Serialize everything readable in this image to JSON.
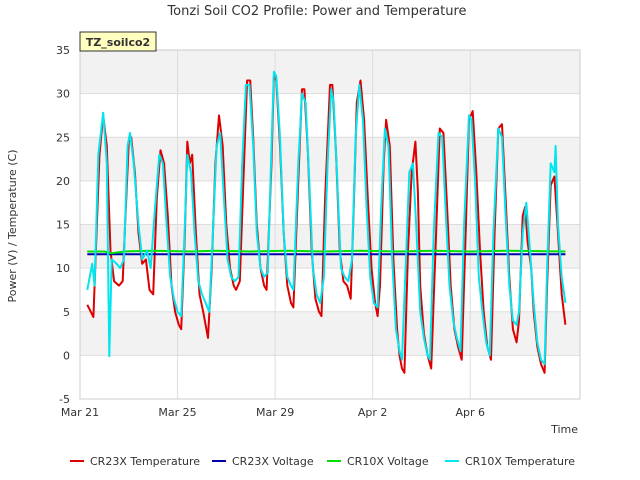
{
  "chart_data": {
    "type": "line",
    "title": "Tonzi Soil CO2 Profile: Power and Temperature",
    "xlabel": "Time",
    "ylabel": "Power (V) / Temperature (C)",
    "badge": "TZ_soilco2",
    "ylim": [
      -5,
      35
    ],
    "yticks": [
      -5,
      0,
      5,
      10,
      15,
      20,
      25,
      30,
      35
    ],
    "xlim": [
      0,
      20.5
    ],
    "xticks": [
      {
        "x": 0,
        "label": "Mar 21"
      },
      {
        "x": 4,
        "label": "Mar 25"
      },
      {
        "x": 8,
        "label": "Mar 29"
      },
      {
        "x": 12,
        "label": "Apr 2"
      },
      {
        "x": 16,
        "label": "Apr 6"
      }
    ],
    "grid": true,
    "legend_position": "bottom",
    "series": [
      {
        "name": "CR23X Temperature",
        "color": "#dd0000",
        "points": [
          [
            0.3,
            5.8
          ],
          [
            0.55,
            4.4
          ],
          [
            0.8,
            23
          ],
          [
            0.95,
            27.5
          ],
          [
            1.1,
            24
          ],
          [
            1.25,
            12
          ],
          [
            1.4,
            8.5
          ],
          [
            1.6,
            8
          ],
          [
            1.75,
            8.5
          ],
          [
            1.85,
            15
          ],
          [
            2.0,
            24.5
          ],
          [
            2.1,
            25
          ],
          [
            2.25,
            21
          ],
          [
            2.4,
            14
          ],
          [
            2.55,
            10.5
          ],
          [
            2.7,
            11
          ],
          [
            2.85,
            7.5
          ],
          [
            3.0,
            7
          ],
          [
            3.15,
            18
          ],
          [
            3.3,
            23.5
          ],
          [
            3.45,
            22
          ],
          [
            3.6,
            16
          ],
          [
            3.75,
            8
          ],
          [
            3.9,
            5
          ],
          [
            4.05,
            3.5
          ],
          [
            4.15,
            3
          ],
          [
            4.3,
            14
          ],
          [
            4.4,
            24.5
          ],
          [
            4.5,
            22
          ],
          [
            4.6,
            23
          ],
          [
            4.75,
            14
          ],
          [
            4.9,
            7
          ],
          [
            5.05,
            5
          ],
          [
            5.25,
            2
          ],
          [
            5.4,
            10
          ],
          [
            5.55,
            22
          ],
          [
            5.7,
            27.5
          ],
          [
            5.85,
            24
          ],
          [
            6.0,
            15
          ],
          [
            6.15,
            10
          ],
          [
            6.3,
            8
          ],
          [
            6.4,
            7.5
          ],
          [
            6.55,
            8.5
          ],
          [
            6.7,
            20
          ],
          [
            6.85,
            31.5
          ],
          [
            6.98,
            31.5
          ],
          [
            7.1,
            25
          ],
          [
            7.25,
            15
          ],
          [
            7.4,
            10
          ],
          [
            7.55,
            8
          ],
          [
            7.65,
            7.5
          ],
          [
            7.85,
            22
          ],
          [
            7.95,
            32
          ],
          [
            8.05,
            31.5
          ],
          [
            8.2,
            24
          ],
          [
            8.35,
            14
          ],
          [
            8.5,
            8
          ],
          [
            8.65,
            6
          ],
          [
            8.75,
            5.5
          ],
          [
            8.95,
            20
          ],
          [
            9.1,
            30.5
          ],
          [
            9.2,
            30.5
          ],
          [
            9.35,
            23
          ],
          [
            9.5,
            12
          ],
          [
            9.65,
            6.5
          ],
          [
            9.8,
            5
          ],
          [
            9.9,
            4.5
          ],
          [
            10.05,
            18
          ],
          [
            10.25,
            31
          ],
          [
            10.35,
            31
          ],
          [
            10.5,
            23
          ],
          [
            10.65,
            12
          ],
          [
            10.8,
            8.5
          ],
          [
            10.95,
            8
          ],
          [
            11.1,
            6.5
          ],
          [
            11.2,
            15
          ],
          [
            11.35,
            29
          ],
          [
            11.5,
            31.5
          ],
          [
            11.65,
            27
          ],
          [
            11.8,
            18
          ],
          [
            11.95,
            10
          ],
          [
            12.1,
            6
          ],
          [
            12.2,
            4.5
          ],
          [
            12.3,
            8
          ],
          [
            12.45,
            22
          ],
          [
            12.55,
            27
          ],
          [
            12.7,
            24
          ],
          [
            12.85,
            11
          ],
          [
            13.0,
            3
          ],
          [
            13.1,
            0
          ],
          [
            13.2,
            -1.5
          ],
          [
            13.3,
            -2
          ],
          [
            13.45,
            12
          ],
          [
            13.6,
            21
          ],
          [
            13.75,
            24.5
          ],
          [
            13.85,
            19
          ],
          [
            13.95,
            8
          ],
          [
            14.1,
            2.5
          ],
          [
            14.25,
            0
          ],
          [
            14.4,
            -1.5
          ],
          [
            14.6,
            14
          ],
          [
            14.75,
            26
          ],
          [
            14.9,
            25.5
          ],
          [
            15.05,
            17
          ],
          [
            15.2,
            8
          ],
          [
            15.35,
            3
          ],
          [
            15.5,
            1
          ],
          [
            15.65,
            -0.5
          ],
          [
            15.8,
            13
          ],
          [
            15.95,
            27
          ],
          [
            16.1,
            28
          ],
          [
            16.25,
            21
          ],
          [
            16.4,
            12
          ],
          [
            16.55,
            5
          ],
          [
            16.7,
            1
          ],
          [
            16.85,
            -0.5
          ],
          [
            17.0,
            14
          ],
          [
            17.15,
            26
          ],
          [
            17.3,
            26.5
          ],
          [
            17.45,
            18
          ],
          [
            17.6,
            9
          ],
          [
            17.75,
            3
          ],
          [
            17.9,
            1.5
          ],
          [
            18.0,
            4
          ],
          [
            18.15,
            16
          ],
          [
            18.25,
            17
          ],
          [
            18.35,
            13
          ],
          [
            18.5,
            10
          ],
          [
            18.6,
            5
          ],
          [
            18.75,
            1
          ],
          [
            18.9,
            -1
          ],
          [
            19.05,
            -2
          ],
          [
            19.15,
            8
          ],
          [
            19.3,
            19.5
          ],
          [
            19.45,
            20.5
          ],
          [
            19.6,
            14
          ],
          [
            19.75,
            7
          ],
          [
            19.9,
            3.5
          ]
        ]
      },
      {
        "name": "CR23X Voltage",
        "color": "#0000aa",
        "points": [
          [
            0.3,
            11.6
          ],
          [
            4,
            11.6
          ],
          [
            8,
            11.6
          ],
          [
            12,
            11.6
          ],
          [
            16,
            11.6
          ],
          [
            19.9,
            11.6
          ]
        ]
      },
      {
        "name": "CR10X Voltage",
        "color": "#00dd00",
        "points": [
          [
            0.3,
            11.9
          ],
          [
            1,
            11.9
          ],
          [
            1.3,
            11.7
          ],
          [
            1.8,
            11.9
          ],
          [
            3,
            12.0
          ],
          [
            4.6,
            11.9
          ],
          [
            5.5,
            12.0
          ],
          [
            7,
            11.9
          ],
          [
            8.5,
            12.0
          ],
          [
            10,
            11.9
          ],
          [
            11.5,
            12.0
          ],
          [
            13,
            11.9
          ],
          [
            14.5,
            12.0
          ],
          [
            16,
            11.9
          ],
          [
            17.5,
            12.0
          ],
          [
            19.9,
            11.9
          ]
        ]
      },
      {
        "name": "CR10X Temperature",
        "color": "#00e5ee",
        "points": [
          [
            0.3,
            7.5
          ],
          [
            0.5,
            10.5
          ],
          [
            0.6,
            8
          ],
          [
            0.75,
            23
          ],
          [
            0.95,
            27.8
          ],
          [
            1.1,
            22
          ],
          [
            1.2,
            -0.1
          ],
          [
            1.3,
            11
          ],
          [
            1.5,
            10.5
          ],
          [
            1.65,
            10
          ],
          [
            1.8,
            11
          ],
          [
            1.95,
            24
          ],
          [
            2.05,
            25.5
          ],
          [
            2.2,
            22
          ],
          [
            2.4,
            15
          ],
          [
            2.55,
            11
          ],
          [
            2.75,
            12
          ],
          [
            2.9,
            10
          ],
          [
            3.05,
            16
          ],
          [
            3.25,
            23
          ],
          [
            3.4,
            22
          ],
          [
            3.55,
            15
          ],
          [
            3.7,
            9
          ],
          [
            3.85,
            6.5
          ],
          [
            4.0,
            5
          ],
          [
            4.15,
            4.5
          ],
          [
            4.3,
            15
          ],
          [
            4.4,
            23
          ],
          [
            4.55,
            21
          ],
          [
            4.7,
            14
          ],
          [
            4.85,
            8.5
          ],
          [
            5.0,
            7
          ],
          [
            5.15,
            6
          ],
          [
            5.3,
            5
          ],
          [
            5.45,
            14
          ],
          [
            5.6,
            24
          ],
          [
            5.75,
            25.5
          ],
          [
            5.9,
            18
          ],
          [
            6.05,
            11
          ],
          [
            6.2,
            9
          ],
          [
            6.35,
            8.5
          ],
          [
            6.5,
            9
          ],
          [
            6.65,
            22
          ],
          [
            6.8,
            31
          ],
          [
            6.95,
            31
          ],
          [
            7.1,
            24
          ],
          [
            7.25,
            14
          ],
          [
            7.4,
            10
          ],
          [
            7.55,
            9
          ],
          [
            7.7,
            9.5
          ],
          [
            7.85,
            24
          ],
          [
            7.95,
            32.5
          ],
          [
            8.05,
            32
          ],
          [
            8.2,
            25
          ],
          [
            8.35,
            14
          ],
          [
            8.5,
            9
          ],
          [
            8.65,
            8
          ],
          [
            8.75,
            7.5
          ],
          [
            8.95,
            22
          ],
          [
            9.1,
            30
          ],
          [
            9.25,
            29
          ],
          [
            9.4,
            20
          ],
          [
            9.55,
            10
          ],
          [
            9.7,
            7
          ],
          [
            9.85,
            6
          ],
          [
            10.0,
            9
          ],
          [
            10.15,
            22
          ],
          [
            10.3,
            30.5
          ],
          [
            10.4,
            29
          ],
          [
            10.55,
            20
          ],
          [
            10.7,
            10
          ],
          [
            10.85,
            9
          ],
          [
            11.0,
            8.5
          ],
          [
            11.15,
            11
          ],
          [
            11.3,
            25
          ],
          [
            11.45,
            31
          ],
          [
            11.6,
            27
          ],
          [
            11.75,
            17
          ],
          [
            11.9,
            9
          ],
          [
            12.05,
            6
          ],
          [
            12.2,
            5.5
          ],
          [
            12.35,
            17
          ],
          [
            12.5,
            26
          ],
          [
            12.65,
            24
          ],
          [
            12.8,
            11
          ],
          [
            12.95,
            3
          ],
          [
            13.1,
            0.5
          ],
          [
            13.2,
            -0.5
          ],
          [
            13.35,
            10
          ],
          [
            13.5,
            21
          ],
          [
            13.65,
            22
          ],
          [
            13.8,
            14
          ],
          [
            13.95,
            5
          ],
          [
            14.1,
            2
          ],
          [
            14.25,
            0
          ],
          [
            14.35,
            -0.5
          ],
          [
            14.5,
            14
          ],
          [
            14.7,
            25.5
          ],
          [
            14.85,
            25
          ],
          [
            15.0,
            16
          ],
          [
            15.15,
            8
          ],
          [
            15.3,
            4
          ],
          [
            15.45,
            2
          ],
          [
            15.6,
            0.5
          ],
          [
            15.75,
            15
          ],
          [
            15.95,
            27.5
          ],
          [
            16.05,
            27
          ],
          [
            16.2,
            20
          ],
          [
            16.35,
            9
          ],
          [
            16.5,
            5
          ],
          [
            16.65,
            1.5
          ],
          [
            16.8,
            0
          ],
          [
            16.95,
            14
          ],
          [
            17.15,
            26
          ],
          [
            17.3,
            25
          ],
          [
            17.45,
            16
          ],
          [
            17.6,
            8
          ],
          [
            17.75,
            4
          ],
          [
            17.9,
            3.5
          ],
          [
            18.0,
            5
          ],
          [
            18.15,
            14
          ],
          [
            18.3,
            17.5
          ],
          [
            18.45,
            12
          ],
          [
            18.6,
            6
          ],
          [
            18.75,
            1.5
          ],
          [
            18.9,
            -0.5
          ],
          [
            19.05,
            -1
          ],
          [
            19.15,
            10
          ],
          [
            19.3,
            22
          ],
          [
            19.45,
            21
          ],
          [
            19.5,
            24
          ],
          [
            19.6,
            15
          ],
          [
            19.75,
            9
          ],
          [
            19.9,
            6
          ]
        ]
      }
    ]
  }
}
